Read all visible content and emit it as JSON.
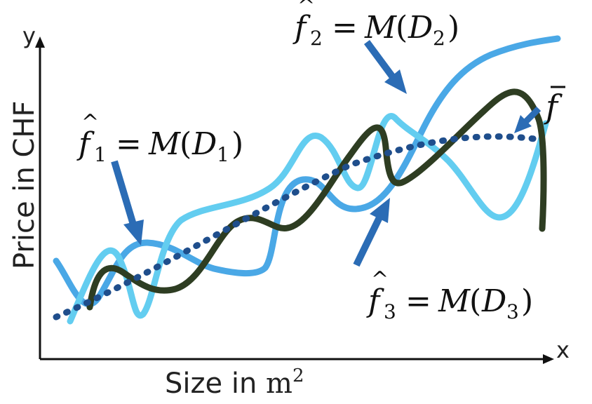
{
  "axes": {
    "x_name": "x",
    "y_name": "y",
    "x_label_text": "Size in ",
    "x_label_unit": "m",
    "x_label_exp": "2",
    "y_label": "Price in CHF"
  },
  "labels": {
    "f1": {
      "func": "f",
      "sub": "1",
      "eq": "=",
      "op": "M",
      "lp": "(",
      "data": "D",
      "dsub": "1",
      "rp": ")"
    },
    "f2": {
      "func": "f",
      "sub": "2",
      "eq": "=",
      "op": "M",
      "lp": "(",
      "data": "D",
      "dsub": "2",
      "rp": ")"
    },
    "f3": {
      "func": "f",
      "sub": "3",
      "eq": "=",
      "op": "M",
      "lp": "(",
      "data": "D",
      "dsub": "3",
      "rp": ")"
    },
    "fbar": {
      "func": "f"
    }
  },
  "colors": {
    "axis": "#111111",
    "f1": "#4aa8e6",
    "f2": "#63cdf0",
    "f3": "#2e3d22",
    "fbar": "#1f4e8c",
    "arrow": "#2b6cb5"
  }
}
